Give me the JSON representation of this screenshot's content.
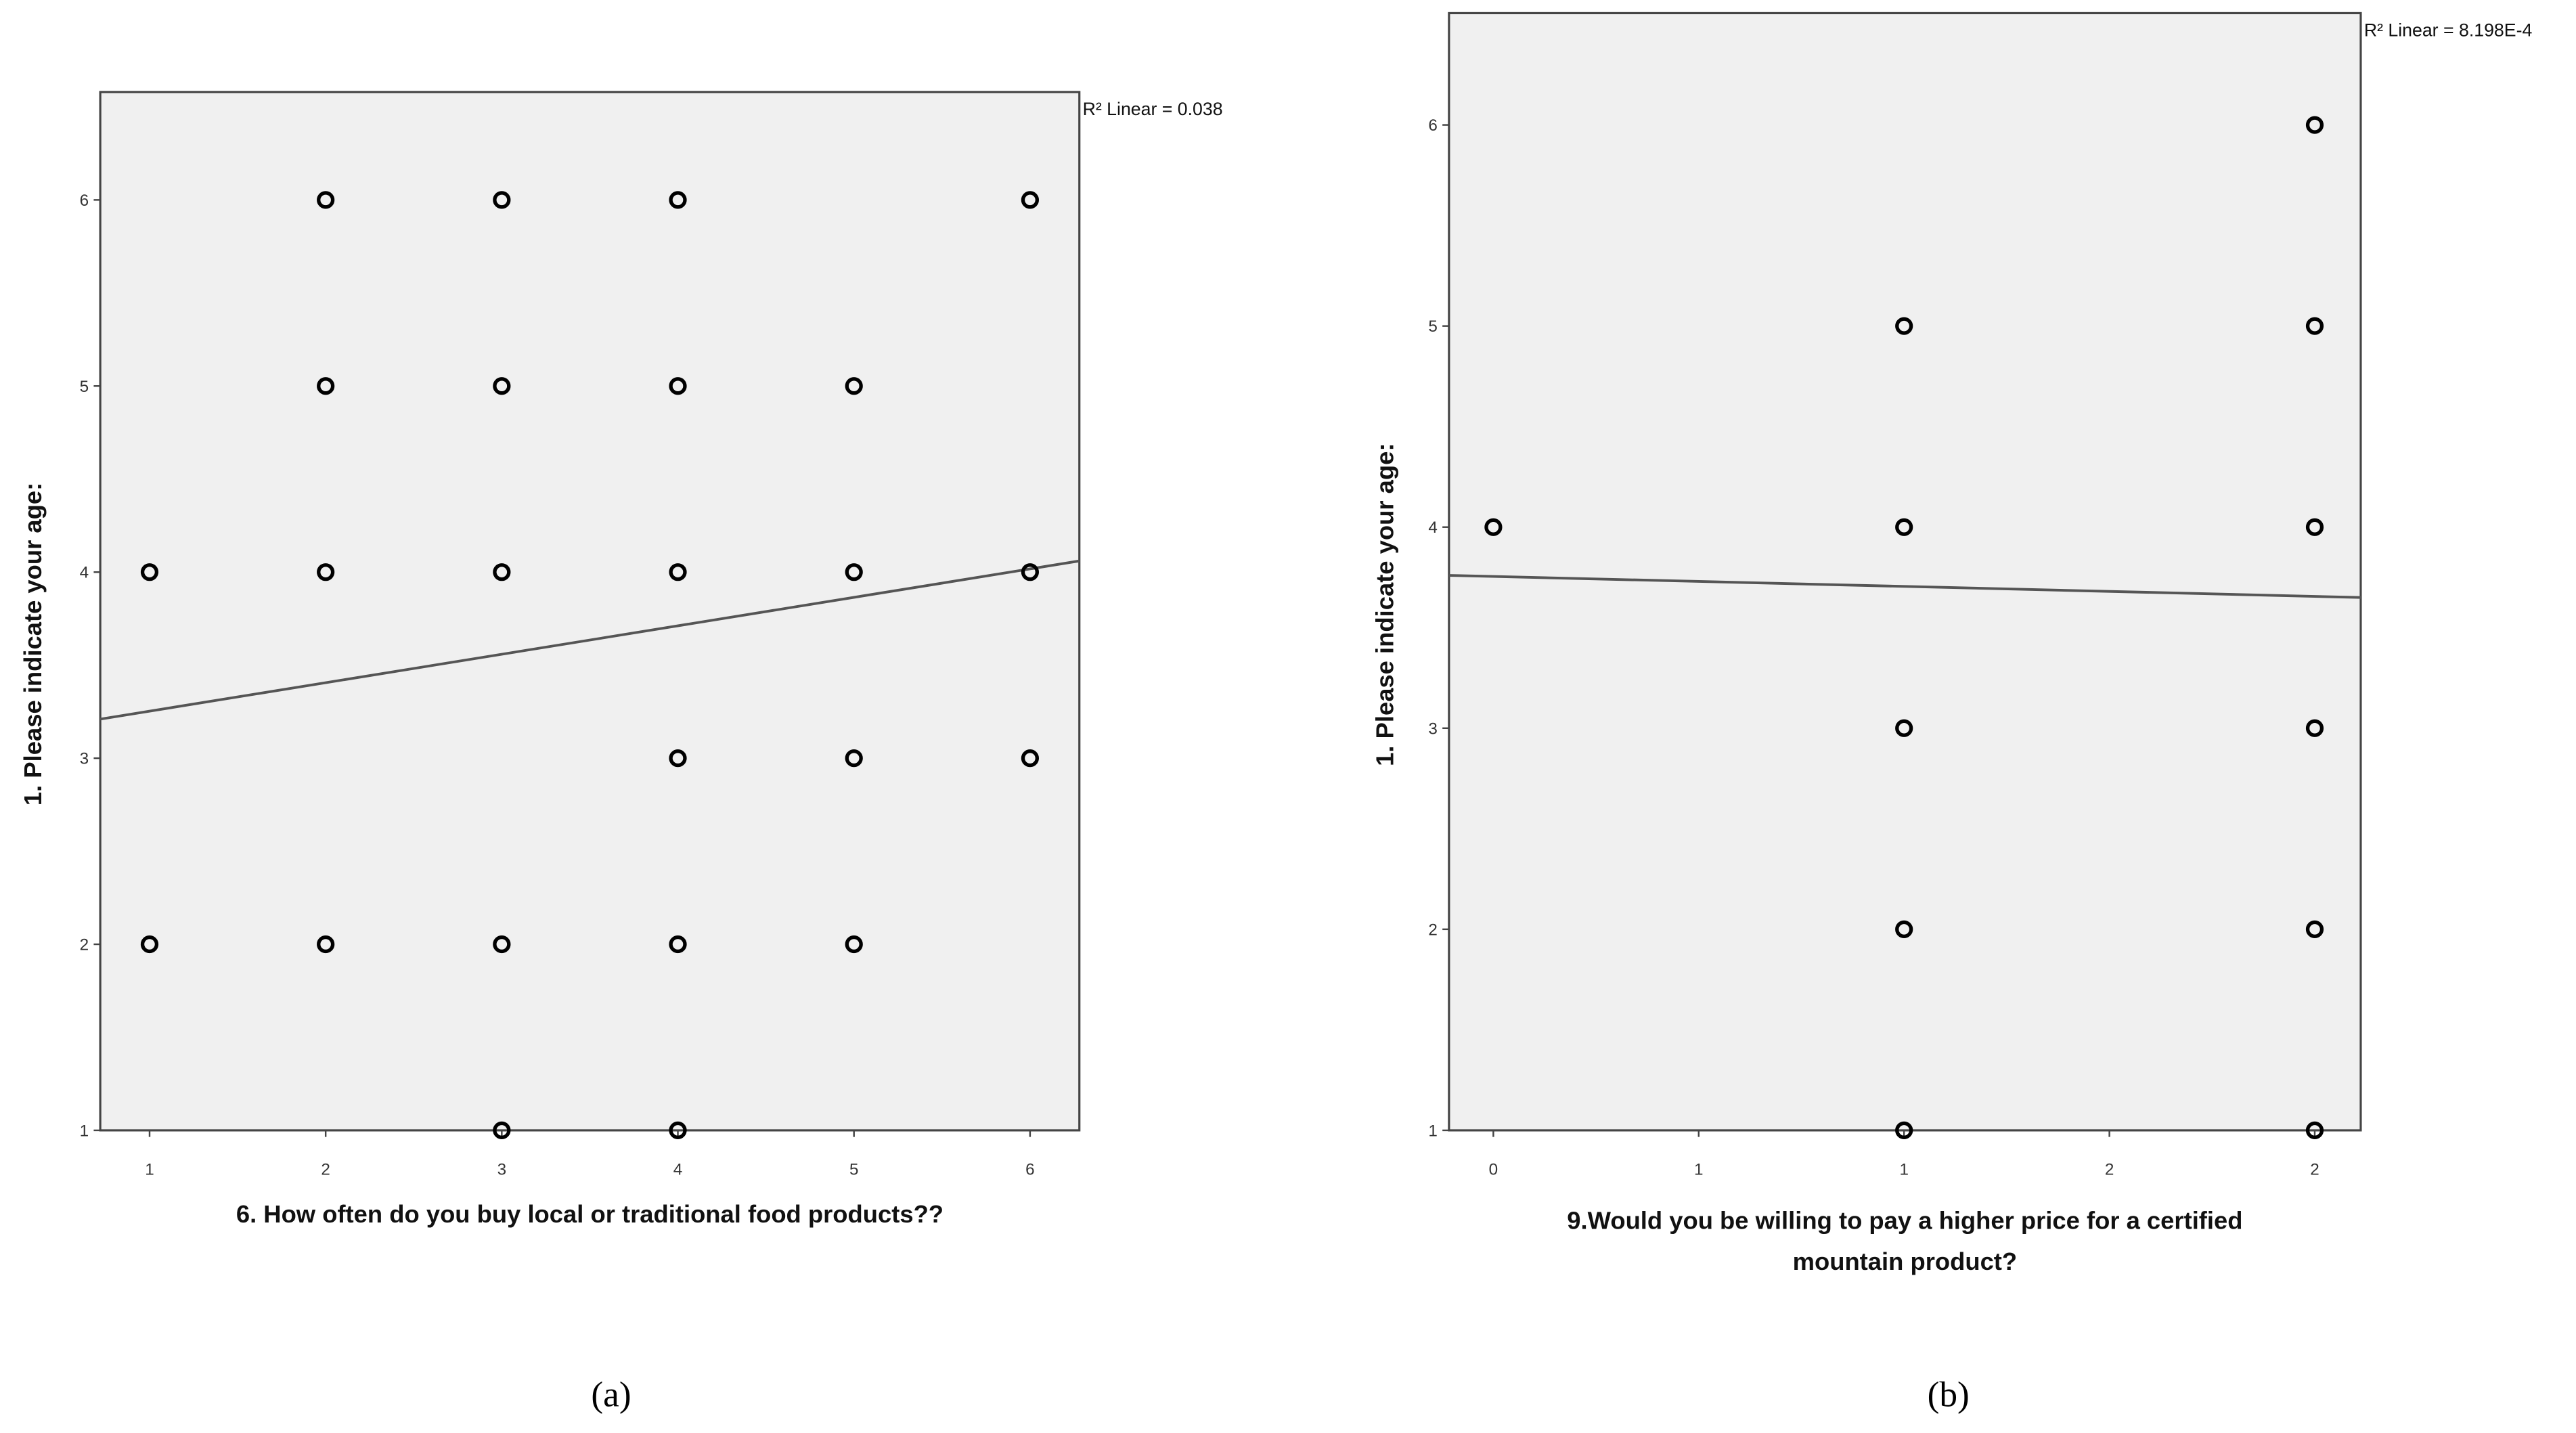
{
  "chart_data": [
    {
      "type": "scatter",
      "y_label": "1. Please indicate your age:",
      "x_label": [
        "6. How often do you buy local or traditional food products??"
      ],
      "annotation": "R² Linear = 0.038",
      "caption": "(a)",
      "x": [
        1,
        1,
        2,
        2,
        2,
        2,
        3,
        3,
        3,
        3,
        3,
        4,
        4,
        4,
        4,
        4,
        4,
        5,
        5,
        5,
        5,
        6,
        6,
        6
      ],
      "values": [
        4,
        2,
        6,
        5,
        4,
        2,
        6,
        5,
        4,
        2,
        1,
        6,
        5,
        4,
        3,
        2,
        1,
        5,
        4,
        3,
        2,
        6,
        4,
        3
      ],
      "color": "#000000",
      "fit_line": {
        "x": [
          0.72,
          6.28
        ],
        "values": [
          3.21,
          4.06
        ],
        "color": "#555555"
      },
      "xlim": [
        0.72,
        6.28
      ],
      "ylim": [
        1,
        6.58
      ],
      "xticks": [
        1,
        2,
        3,
        4,
        5,
        6
      ],
      "yticks": [
        1,
        2,
        3,
        4,
        5,
        6
      ]
    },
    {
      "type": "scatter",
      "y_label": "1. Please indicate your age:",
      "x_label": [
        "9.Would you be willing to pay a higher price for a certified",
        "mountain product?"
      ],
      "annotation": "R² Linear = 8.198E-4",
      "caption": "(b)",
      "x": [
        0,
        1,
        1,
        1,
        1,
        1,
        2,
        2,
        2,
        2,
        2,
        2
      ],
      "values": [
        4,
        5,
        4,
        3,
        2,
        1,
        6,
        5,
        4,
        3,
        2,
        1
      ],
      "color": "#000000",
      "fit_line": {
        "x": [
          -0.108,
          2.112
        ],
        "values": [
          3.76,
          3.65
        ],
        "color": "#555555"
      },
      "xlim": [
        -0.108,
        2.112
      ],
      "ylim": [
        1,
        6.556
      ],
      "xticks": [
        0,
        {
          "value": 0.5,
          "label": "1"
        },
        1,
        {
          "value": 1.5,
          "label": "2"
        },
        2
      ],
      "yticks": [
        1,
        2,
        3,
        4,
        5,
        6
      ]
    }
  ]
}
